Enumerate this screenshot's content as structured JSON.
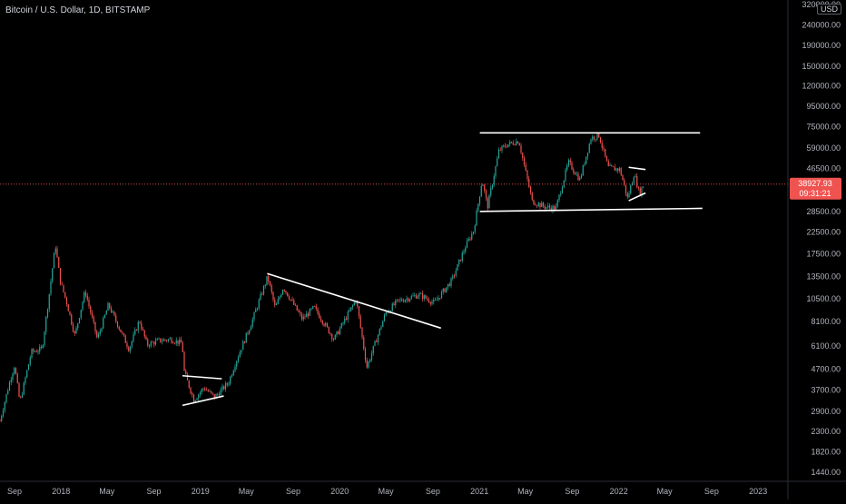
{
  "header": {
    "title": "Bitcoin / U.S. Dollar, 1D, BITSTAMP",
    "currency_button": "USD"
  },
  "price_scale": {
    "top_label": "320000.00",
    "labels": [
      "240000.00",
      "190000.00",
      "150000.00",
      "120000.00",
      "95000.00",
      "75000.00",
      "59000.00",
      "46500.00",
      "28500.00",
      "22500.00",
      "17500.00",
      "13500.00",
      "10500.00",
      "8100.00",
      "6100.00",
      "4700.00",
      "3700.00",
      "2900.00",
      "2300.00",
      "1820.00",
      "1440.00"
    ],
    "current_price": "38927.93",
    "countdown": "09:31:21"
  },
  "time_axis": {
    "labels": [
      "Sep",
      "2018",
      "May",
      "Sep",
      "2019",
      "May",
      "Sep",
      "2020",
      "May",
      "Sep",
      "2021",
      "May",
      "Sep",
      "2022",
      "May",
      "Sep",
      "2023"
    ]
  },
  "colors": {
    "background": "#000000",
    "up": "#26a69a",
    "down": "#ef5350",
    "trendline": "#ffffff",
    "price_line": "#ef5350",
    "axis_text": "#b2b5be"
  },
  "chart_data": {
    "type": "candlestick",
    "title": "Bitcoin / U.S. Dollar, 1D, BITSTAMP",
    "xlabel": "",
    "ylabel": "",
    "y_scale": "log",
    "ylim": [
      1300,
      320000
    ],
    "xlim": [
      "2017-07-25",
      "2023-03-20"
    ],
    "series": [
      {
        "values": [
          [
            "2017-07-25",
            2600
          ],
          [
            "2017-08-20",
            4100
          ],
          [
            "2017-09-01",
            4900
          ],
          [
            "2017-09-15",
            3200
          ],
          [
            "2017-10-15",
            5700
          ],
          [
            "2017-11-12",
            5900
          ],
          [
            "2017-11-28",
            10000
          ],
          [
            "2017-12-17",
            19500
          ],
          [
            "2017-12-30",
            12800
          ],
          [
            "2018-01-16",
            10000
          ],
          [
            "2018-02-06",
            6900
          ],
          [
            "2018-03-05",
            11500
          ],
          [
            "2018-04-06",
            6600
          ],
          [
            "2018-05-05",
            9800
          ],
          [
            "2018-06-28",
            5900
          ],
          [
            "2018-07-25",
            8200
          ],
          [
            "2018-08-14",
            6200
          ],
          [
            "2018-09-15",
            6500
          ],
          [
            "2018-10-15",
            6600
          ],
          [
            "2018-11-14",
            6300
          ],
          [
            "2018-11-20",
            4500
          ],
          [
            "2018-12-15",
            3300
          ],
          [
            "2019-01-10",
            3800
          ],
          [
            "2019-02-07",
            3400
          ],
          [
            "2019-03-15",
            4000
          ],
          [
            "2019-04-02",
            5000
          ],
          [
            "2019-05-15",
            8000
          ],
          [
            "2019-06-26",
            13500
          ],
          [
            "2019-07-16",
            9400
          ],
          [
            "2019-08-06",
            12000
          ],
          [
            "2019-09-25",
            8300
          ],
          [
            "2019-10-26",
            9500
          ],
          [
            "2019-12-17",
            6600
          ],
          [
            "2020-02-13",
            10400
          ],
          [
            "2020-03-12",
            4800
          ],
          [
            "2020-04-30",
            8900
          ],
          [
            "2020-06-01",
            10200
          ],
          [
            "2020-07-27",
            11000
          ],
          [
            "2020-09-05",
            10000
          ],
          [
            "2020-10-21",
            13000
          ],
          [
            "2020-11-25",
            19000
          ],
          [
            "2020-12-17",
            23000
          ],
          [
            "2021-01-08",
            41000
          ],
          [
            "2021-01-22",
            30000
          ],
          [
            "2021-02-21",
            57000
          ],
          [
            "2021-03-13",
            61000
          ],
          [
            "2021-04-14",
            64000
          ],
          [
            "2021-05-19",
            32000
          ],
          [
            "2021-06-22",
            30000
          ],
          [
            "2021-07-20",
            29500
          ],
          [
            "2021-08-22",
            50000
          ],
          [
            "2021-09-21",
            41000
          ],
          [
            "2021-10-20",
            66000
          ],
          [
            "2021-11-10",
            68000
          ],
          [
            "2021-12-04",
            47000
          ],
          [
            "2022-01-04",
            46000
          ],
          [
            "2022-01-24",
            33000
          ],
          [
            "2022-02-10",
            44000
          ],
          [
            "2022-02-24",
            35000
          ],
          [
            "2022-03-08",
            38927.93
          ]
        ]
      }
    ],
    "trendlines": [
      [
        [
          "2021-01-02",
          70000
        ],
        [
          "2022-08-02",
          70000
        ]
      ],
      [
        [
          "2021-01-02",
          28500
        ],
        [
          "2022-08-08",
          29500
        ]
      ],
      [
        [
          "2022-01-27",
          47200
        ],
        [
          "2022-03-12",
          46000
        ]
      ],
      [
        [
          "2022-01-27",
          32200
        ],
        [
          "2022-03-12",
          35200
        ]
      ],
      [
        [
          "2019-06-25",
          14000
        ],
        [
          "2020-09-22",
          7500
        ]
      ],
      [
        [
          "2018-11-15",
          4350
        ],
        [
          "2019-02-26",
          4200
        ]
      ],
      [
        [
          "2018-11-15",
          3100
        ],
        [
          "2019-03-03",
          3450
        ]
      ]
    ]
  }
}
